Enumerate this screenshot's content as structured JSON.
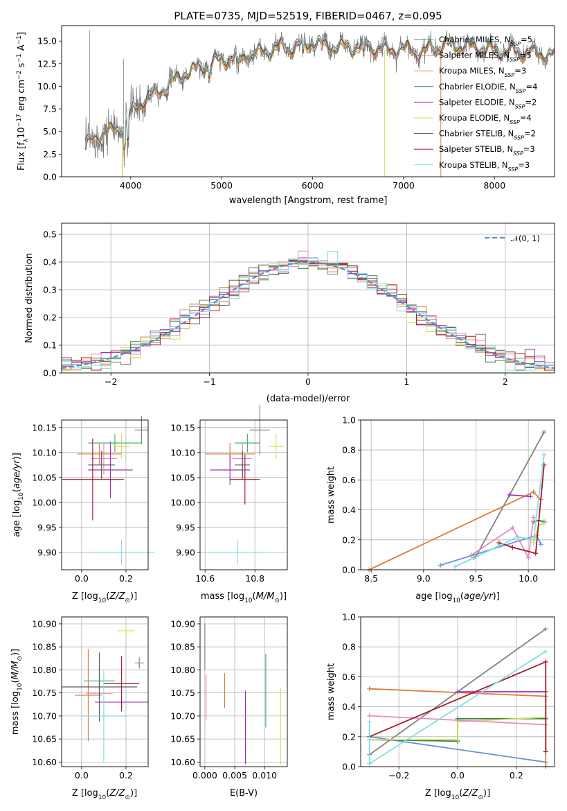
{
  "title": "PLATE=0735, MJD=52519, FIBERID=0467, z=0.095",
  "colors": [
    "#808080",
    "#e07b39",
    "#9b30b8",
    "#3cb371",
    "#d7e05b",
    "#e88ac0",
    "#595959",
    "#a61c2e",
    "#7fdfe6",
    "#6a8fd8"
  ],
  "fit_colors": [
    "#808080",
    "#e07b39",
    "#d4a017",
    "#3a7d44",
    "#9b30b8",
    "#d4e157",
    "#555555",
    "#a61c2e",
    "#7fdfe6"
  ],
  "chart_data": [
    {
      "type": "line",
      "id": "spectrum",
      "xlabel": "wavelength [Angstrom, rest frame]",
      "ylabel": "Flux [f_λ10^-17 erg cm^-2 s^-1 A^-1]",
      "xlim": [
        3240,
        8660
      ],
      "ylim": [
        0,
        16.7
      ],
      "xticks": [
        "4000",
        "5000",
        "6000",
        "7000",
        "8000"
      ],
      "yticks": [
        "0.0",
        "2.5",
        "5.0",
        "7.5",
        "10.0",
        "12.5",
        "15.0"
      ],
      "grid": false,
      "legend_position": "upper-right",
      "series": [
        {
          "name": "Chabrier MILES",
          "nssp": "5"
        },
        {
          "name": "Salpeter MILES",
          "nssp": "5"
        },
        {
          "name": "Kroupa MILES",
          "nssp": "3"
        },
        {
          "name": "Chabrier ELODIE",
          "nssp": "4"
        },
        {
          "name": "Salpeter ELODIE",
          "nssp": "2"
        },
        {
          "name": "Kroupa ELODIE",
          "nssp": "4"
        },
        {
          "name": "Chabrier STELIB",
          "nssp": "2"
        },
        {
          "name": "Salpeter STELIB",
          "nssp": "3"
        },
        {
          "name": "Kroupa STELIB",
          "nssp": "3"
        }
      ],
      "continuum": {
        "x": [
          3500,
          3600,
          3700,
          3800,
          3900,
          4000,
          4100,
          4200,
          4300,
          4400,
          4500,
          4600,
          4700,
          4800,
          4900,
          5000,
          5200,
          5400,
          5600,
          5800,
          6000,
          6200,
          6400,
          6600,
          6800,
          7000,
          7200,
          7400,
          7600,
          7800,
          8000,
          8200,
          8400,
          8600
        ],
        "y": [
          3.2,
          4.2,
          5.0,
          5.0,
          5.5,
          6.8,
          8.2,
          8.8,
          9.5,
          10.0,
          10.8,
          11.5,
          11.8,
          12.3,
          12.5,
          13.0,
          13.2,
          13.7,
          14.2,
          14.3,
          14.8,
          14.4,
          14.3,
          14.5,
          14.0,
          14.2,
          13.8,
          14.5,
          14.5,
          14.3,
          14.0,
          13.9,
          13.8,
          13.5
        ]
      }
    },
    {
      "type": "bar",
      "id": "residuals",
      "xlabel": "(data-model)/error",
      "ylabel": "Normed distribution",
      "xlim": [
        -2.5,
        2.5
      ],
      "ylim": [
        0,
        0.54
      ],
      "xticks": [
        "−2",
        "−1",
        "0",
        "1",
        "2"
      ],
      "yticks": [
        "0.0",
        "0.1",
        "0.2",
        "0.3",
        "0.4",
        "0.5"
      ],
      "grid": true,
      "legend_position": "upper-right",
      "legend": "𝒩(0, 1)",
      "bin_width": 0.1,
      "bin_start": -2.5,
      "n_bins": 50
    },
    {
      "type": "scatter",
      "id": "z-age",
      "xlabel": "Z [log10(Z/Z⊙)]",
      "ylabel": "age [log10(age/yr)]",
      "xlim": [
        -0.09,
        0.3
      ],
      "ylim": [
        9.865,
        10.165
      ],
      "xticks": [
        "0.0",
        "0.2"
      ],
      "yticks": [
        "9.90",
        "9.95",
        "10.00",
        "10.05",
        "10.10",
        "10.15"
      ],
      "points": [
        {
          "x": 0.27,
          "y": 10.145,
          "ex": 0.03,
          "ey": 0.028
        },
        {
          "x": 0.08,
          "y": 10.097,
          "ex": 0.1,
          "ey": 0.022
        },
        {
          "x": 0.13,
          "y": 10.065,
          "ex": 0.1,
          "ey": 0.057
        },
        {
          "x": 0.15,
          "y": 10.119,
          "ex": 0.12,
          "ey": 0.018
        },
        {
          "x": 0.18,
          "y": 10.112,
          "ex": 0.04,
          "ey": 0.025
        },
        {
          "x": 0.1,
          "y": 10.088,
          "ex": 0.06,
          "ey": 0.032
        },
        {
          "x": 0.09,
          "y": 10.075,
          "ex": 0.06,
          "ey": 0.028
        },
        {
          "x": 0.05,
          "y": 10.046,
          "ex": 0.14,
          "ey": 0.082
        },
        {
          "x": 0.18,
          "y": 9.9,
          "ex": 0.15,
          "ey": 0.025
        }
      ]
    },
    {
      "type": "scatter",
      "id": "mass-age",
      "xlabel": "mass [log10(M/M⊙)]",
      "ylabel": "",
      "xlim": [
        10.58,
        10.93
      ],
      "ylim": [
        9.865,
        10.165
      ],
      "xticks": [
        "10.6",
        "10.8"
      ],
      "yticks": [
        "9.90",
        "9.95",
        "10.00",
        "10.05",
        "10.10",
        "10.15"
      ],
      "points": [
        {
          "x": 10.82,
          "y": 10.145,
          "ex": 0.04,
          "ey": 0.05
        },
        {
          "x": 10.7,
          "y": 10.097,
          "ex": 0.1,
          "ey": 0.022
        },
        {
          "x": 10.7,
          "y": 10.065,
          "ex": 0.08,
          "ey": 0.03
        },
        {
          "x": 10.77,
          "y": 10.119,
          "ex": 0.05,
          "ey": 0.018
        },
        {
          "x": 10.885,
          "y": 10.112,
          "ex": 0.03,
          "ey": 0.025
        },
        {
          "x": 10.75,
          "y": 10.088,
          "ex": 0.04,
          "ey": 0.032
        },
        {
          "x": 10.75,
          "y": 10.075,
          "ex": 0.03,
          "ey": 0.028
        },
        {
          "x": 10.76,
          "y": 10.046,
          "ex": 0.06,
          "ey": 0.05
        },
        {
          "x": 10.73,
          "y": 9.9,
          "ex": 0.12,
          "ey": 0.025
        }
      ]
    },
    {
      "type": "line",
      "id": "age-weight",
      "xlabel": "age [log10(age/yr)]",
      "ylabel": "mass weight",
      "xlim": [
        8.4,
        10.25
      ],
      "ylim": [
        0,
        1
      ],
      "xticks": [
        "8.5",
        "9.0",
        "9.5",
        "10.0"
      ],
      "yticks": [
        "0.0",
        "0.2",
        "0.4",
        "0.6",
        "0.8",
        "1.0"
      ],
      "series": [
        {
          "x": [
            9.48,
            9.5,
            10.15
          ],
          "y": [
            0.08,
            0.09,
            0.92
          ]
        },
        {
          "x": [
            8.48,
            10.05,
            10.1,
            10.12
          ],
          "y": [
            0.0,
            0.52,
            0.48,
            0.47
          ]
        },
        {
          "x": [
            9.16,
            10.08,
            10.12
          ],
          "y": [
            0.03,
            0.23,
            0.17
          ]
        },
        {
          "x": [
            10.05,
            10.1,
            10.15
          ],
          "y": [
            0.32,
            0.33,
            0.32
          ]
        },
        {
          "x": [
            9.82,
            10.02
          ],
          "y": [
            0.5,
            0.49
          ]
        },
        {
          "x": [
            10.05,
            10.1,
            10.15
          ],
          "y": [
            0.18,
            0.3,
            0.31
          ]
        },
        {
          "x": [
            9.46,
            9.85,
            10.0,
            10.05
          ],
          "y": [
            0.1,
            0.28,
            0.08,
            0.35
          ]
        },
        {
          "x": [
            9.72,
            9.85,
            10.07,
            10.15
          ],
          "y": [
            0.18,
            0.15,
            0.11,
            0.7
          ]
        },
        {
          "x": [
            9.3,
            9.9,
            10.05,
            10.15
          ],
          "y": [
            0.02,
            0.22,
            0.2,
            0.77
          ]
        }
      ]
    },
    {
      "type": "scatter",
      "id": "z-mass",
      "xlabel": "Z [log10(Z/Z⊙)]",
      "ylabel": "mass [log10(M/M⊙)]",
      "xlim": [
        -0.09,
        0.3
      ],
      "ylim": [
        10.59,
        10.915
      ],
      "xticks": [
        "0.0",
        "0.2"
      ],
      "yticks": [
        "10.60",
        "10.65",
        "10.70",
        "10.75",
        "10.80",
        "10.85",
        "10.90"
      ],
      "points": [
        {
          "x": 0.26,
          "y": 10.815,
          "ex": 0.02,
          "ey": 0.012
        },
        {
          "x": 0.03,
          "y": 10.745,
          "ex": 0.06,
          "ey": 0.1
        },
        {
          "x": 0.18,
          "y": 10.73,
          "ex": 0.12,
          "ey": 0.012
        },
        {
          "x": 0.08,
          "y": 10.776,
          "ex": 0.07,
          "ey": 0.02
        },
        {
          "x": 0.2,
          "y": 10.885,
          "ex": 0.04,
          "ey": 0.012
        },
        {
          "x": 0.08,
          "y": 10.749,
          "ex": 0.06,
          "ey": 0.015
        },
        {
          "x": 0.08,
          "y": 10.763,
          "ex": 0.17,
          "ey": 0.075
        },
        {
          "x": 0.18,
          "y": 10.77,
          "ex": 0.08,
          "ey": 0.06
        },
        {
          "x": 0.1,
          "y": 10.7,
          "ex": 0.1,
          "ey": 0.1
        }
      ]
    },
    {
      "type": "scatter",
      "id": "ebv-mass",
      "xlabel": "E(B-V)",
      "ylabel": "",
      "xlim": [
        -0.0008,
        0.0138
      ],
      "ylim": [
        10.59,
        10.915
      ],
      "xticks": [
        "0.000",
        "0.005",
        "0.010"
      ],
      "yticks": [
        "10.60",
        "10.65",
        "10.70",
        "10.75",
        "10.80",
        "10.85",
        "10.90"
      ],
      "points": [
        {
          "x": 0.0,
          "y": 10.85,
          "ey": 0.05
        },
        {
          "x": 0.0033,
          "y": 10.755,
          "ey": 0.038
        },
        {
          "x": 0.0068,
          "y": 10.675,
          "ey": 0.08
        },
        {
          "x": 0.0102,
          "y": 10.755,
          "ey": 0.08
        },
        {
          "x": 0.0127,
          "y": 10.677,
          "ey": 0.083
        },
        {
          "x": 0.0002,
          "y": 10.74,
          "ey": 0.05
        }
      ]
    },
    {
      "type": "line",
      "id": "z-weight",
      "xlabel": "Z [log10(Z/Z⊙)]",
      "ylabel": "mass weight",
      "xlim": [
        -0.33,
        0.33
      ],
      "ylim": [
        0,
        1
      ],
      "xticks": [
        "−0.2",
        "0.0",
        "0.2"
      ],
      "yticks": [
        "0.0",
        "0.2",
        "0.4",
        "0.6",
        "0.8",
        "1.0"
      ],
      "series": [
        {
          "x": [
            -0.3,
            0.3
          ],
          "y": [
            0.08,
            0.92
          ]
        },
        {
          "x": [
            -0.3,
            0.3,
            0.3
          ],
          "y": [
            0.52,
            0.47,
            0.0
          ]
        },
        {
          "x": [
            -0.3,
            0.3
          ],
          "y": [
            0.2,
            0.03
          ]
        },
        {
          "x": [
            -0.3,
            0.0,
            0.0,
            0.3
          ],
          "y": [
            0.18,
            0.17,
            0.32,
            0.32
          ]
        },
        {
          "x": [
            0.0,
            0.3
          ],
          "y": [
            0.5,
            0.5
          ]
        },
        {
          "x": [
            -0.3,
            0.0,
            0.0,
            0.3
          ],
          "y": [
            0.18,
            0.18,
            0.3,
            0.33
          ]
        },
        {
          "x": [
            -0.3,
            0.3
          ],
          "y": [
            0.34,
            0.28
          ]
        },
        {
          "x": [
            -0.3,
            0.3,
            0.3
          ],
          "y": [
            0.2,
            0.7,
            0.1
          ]
        },
        {
          "x": [
            -0.3,
            -0.3,
            0.3
          ],
          "y": [
            0.3,
            0.02,
            0.77
          ]
        }
      ]
    }
  ]
}
